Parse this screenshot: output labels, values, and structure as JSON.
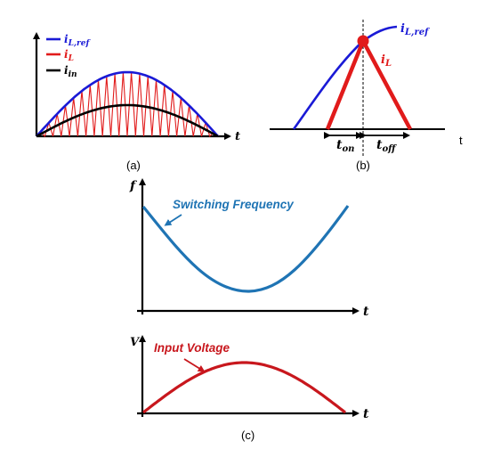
{
  "colors": {
    "blue": "#1a1ad6",
    "red": "#e11b1b",
    "black": "#000000",
    "steel": "#1f74b4",
    "darkred": "#c8171d"
  },
  "panel_a": {
    "caption": "(a)",
    "axis_label_t": "t",
    "legend": [
      {
        "name": "i_L,ref",
        "base": "i",
        "sub": "L,ref",
        "color": "#1a1ad6"
      },
      {
        "name": "i_L",
        "base": "i",
        "sub": "L",
        "color": "#e11b1b"
      },
      {
        "name": "i_in",
        "base": "i",
        "sub": "in",
        "color": "#000000"
      }
    ]
  },
  "panel_b": {
    "caption": "(b)",
    "axis_label_t": "t",
    "ref_label": {
      "base": "i",
      "sub": "L,ref"
    },
    "il_label": {
      "base": "i",
      "sub": "L"
    },
    "ton_label": {
      "base": "t",
      "sub": "on"
    },
    "toff_label": {
      "base": "t",
      "sub": "off"
    }
  },
  "panel_c": {
    "caption": "(c)",
    "top_axis_y": "f",
    "top_axis_x": "t",
    "top_annotation": "Switching Frequency",
    "bottom_axis_y": "V",
    "bottom_axis_x": "t",
    "bottom_annotation": "Input Voltage"
  }
}
